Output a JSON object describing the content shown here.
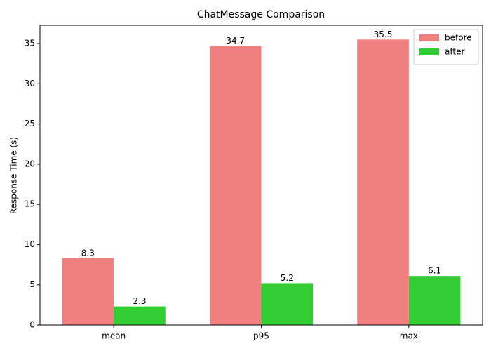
{
  "chart_data": {
    "type": "bar",
    "title": "ChatMessage Comparison",
    "y_label": "Response Time (s)",
    "categories": [
      "mean",
      "p95",
      "max"
    ],
    "series": [
      {
        "name": "before",
        "color": "#f08080",
        "values": [
          8.3,
          34.7,
          35.5
        ]
      },
      {
        "name": "after",
        "color": "#32cd32",
        "values": [
          2.3,
          5.2,
          6.1
        ]
      }
    ],
    "ylim": [
      0,
      37.275
    ],
    "yticks": [
      0,
      5,
      10,
      15,
      20,
      25,
      30,
      35
    ],
    "legend": "upper right"
  }
}
